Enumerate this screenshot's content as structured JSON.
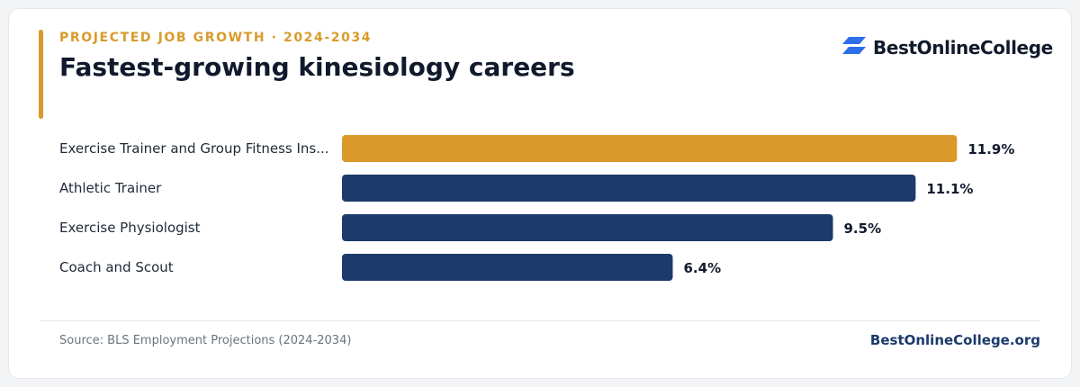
{
  "header": {
    "eyebrow": "PROJECTED JOB GROWTH · 2024-2034",
    "title": "Fastest-growing kinesiology careers"
  },
  "brand": {
    "name": "BestOnlineCollege",
    "icon": "bestonlinecollege-logo-icon",
    "icon_color": "#2d6fe8"
  },
  "colors": {
    "accent": "#d99a2b",
    "bar_default": "#1c3a6b",
    "text_dark": "#111a2c"
  },
  "chart_data": {
    "type": "bar",
    "orientation": "horizontal",
    "categories": [
      "Exercise Trainer and Group Fitness Ins...",
      "Athletic Trainer",
      "Exercise Physiologist",
      "Coach and Scout"
    ],
    "values": [
      11.9,
      11.1,
      9.5,
      6.4
    ],
    "value_labels": [
      "11.9%",
      "11.1%",
      "9.5%",
      "6.4%"
    ],
    "highlight_index": 0,
    "xlim": [
      0,
      12.8
    ],
    "grid": false
  },
  "footer": {
    "source": "Source: BLS Employment Projections (2024-2034)",
    "site": "BestOnlineCollege.org"
  }
}
